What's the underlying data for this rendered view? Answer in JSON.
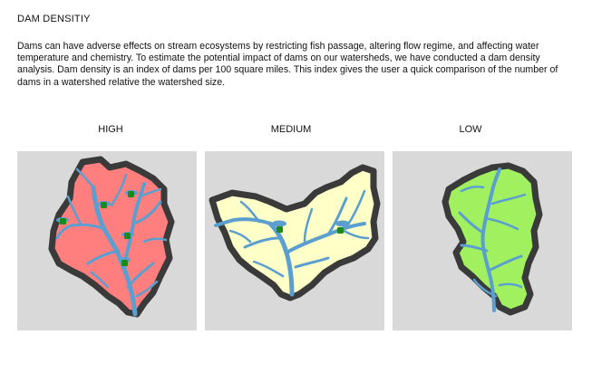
{
  "title": "DAM DENSITIY",
  "description": "Dams can have adverse effects on stream ecosystems by restricting fish passage, altering flow regime, and affecting water temperature and chemistry.  To estimate the potential impact of dams on our watersheds, we have conducted a dam density analysis.  Dam density is an index of dams per 100 square miles.  This index gives the user a quick comparison of the number of dams in a watershed relative the watershed size.",
  "panels": [
    {
      "label": "HIGH",
      "fill": "#ff7f7f"
    },
    {
      "label": "MEDIUM",
      "fill": "#ffffc8"
    },
    {
      "label": "LOW",
      "fill": "#a0f060"
    }
  ],
  "colors": {
    "border": "#3a3a3a",
    "stream": "#5b9fd0",
    "dam": "#1a8a1a",
    "panel_bg": "#d9d9d9"
  }
}
